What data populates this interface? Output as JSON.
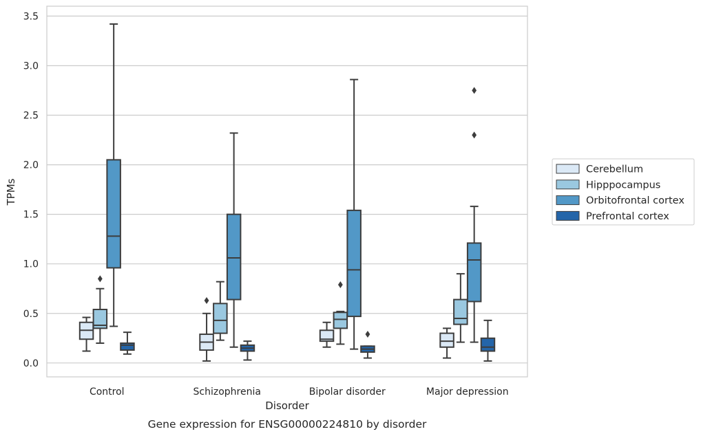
{
  "chart_data": {
    "type": "box",
    "title": "",
    "caption": "Gene expression for ENSG00000224810 by disorder",
    "xlabel": "Disorder",
    "ylabel": "TPMs",
    "ylim": [
      -0.14,
      3.6
    ],
    "yticks": [
      "0.0",
      "0.5",
      "1.0",
      "1.5",
      "2.0",
      "2.5",
      "3.0",
      "3.5"
    ],
    "grid": "horizontal",
    "legend_position": "right",
    "categories": [
      "Control",
      "Schizophrenia",
      "Bipolar disorder",
      "Major depression"
    ],
    "series": [
      {
        "name": "Cerebellum",
        "color": "#dbe9f6",
        "boxes": [
          {
            "whisker_low": 0.12,
            "q1": 0.24,
            "median": 0.33,
            "q3": 0.41,
            "whisker_high": 0.46,
            "outliers": []
          },
          {
            "whisker_low": 0.02,
            "q1": 0.13,
            "median": 0.21,
            "q3": 0.29,
            "whisker_high": 0.5,
            "outliers": [
              0.63
            ]
          },
          {
            "whisker_low": 0.16,
            "q1": 0.22,
            "median": 0.24,
            "q3": 0.33,
            "whisker_high": 0.41,
            "outliers": []
          },
          {
            "whisker_low": 0.05,
            "q1": 0.16,
            "median": 0.22,
            "q3": 0.3,
            "whisker_high": 0.35,
            "outliers": []
          }
        ]
      },
      {
        "name": "Hipppocampus",
        "color": "#9ac8e0",
        "boxes": [
          {
            "whisker_low": 0.2,
            "q1": 0.35,
            "median": 0.38,
            "q3": 0.54,
            "whisker_high": 0.75,
            "outliers": [
              0.85
            ]
          },
          {
            "whisker_low": 0.23,
            "q1": 0.3,
            "median": 0.43,
            "q3": 0.6,
            "whisker_high": 0.82,
            "outliers": []
          },
          {
            "whisker_low": 0.19,
            "q1": 0.35,
            "median": 0.44,
            "q3": 0.51,
            "whisker_high": 0.52,
            "outliers": [
              0.79
            ]
          },
          {
            "whisker_low": 0.21,
            "q1": 0.39,
            "median": 0.45,
            "q3": 0.64,
            "whisker_high": 0.9,
            "outliers": []
          }
        ]
      },
      {
        "name": "Orbitofrontal cortex",
        "color": "#5298c7",
        "boxes": [
          {
            "whisker_low": 0.37,
            "q1": 0.96,
            "median": 1.28,
            "q3": 2.05,
            "whisker_high": 3.42,
            "outliers": []
          },
          {
            "whisker_low": 0.16,
            "q1": 0.64,
            "median": 1.06,
            "q3": 1.5,
            "whisker_high": 2.32,
            "outliers": []
          },
          {
            "whisker_low": 0.14,
            "q1": 0.47,
            "median": 0.94,
            "q3": 1.54,
            "whisker_high": 2.86,
            "outliers": []
          },
          {
            "whisker_low": 0.21,
            "q1": 0.62,
            "median": 1.04,
            "q3": 1.21,
            "whisker_high": 1.58,
            "outliers": [
              2.3,
              2.75
            ]
          }
        ]
      },
      {
        "name": "Prefrontal cortex",
        "color": "#2465a9",
        "boxes": [
          {
            "whisker_low": 0.09,
            "q1": 0.13,
            "median": 0.18,
            "q3": 0.2,
            "whisker_high": 0.31,
            "outliers": []
          },
          {
            "whisker_low": 0.03,
            "q1": 0.12,
            "median": 0.15,
            "q3": 0.18,
            "whisker_high": 0.22,
            "outliers": []
          },
          {
            "whisker_low": 0.05,
            "q1": 0.11,
            "median": 0.14,
            "q3": 0.17,
            "whisker_high": 0.17,
            "outliers": [
              0.29
            ]
          },
          {
            "whisker_low": 0.02,
            "q1": 0.12,
            "median": 0.16,
            "q3": 0.25,
            "whisker_high": 0.43,
            "outliers": []
          }
        ]
      }
    ]
  }
}
